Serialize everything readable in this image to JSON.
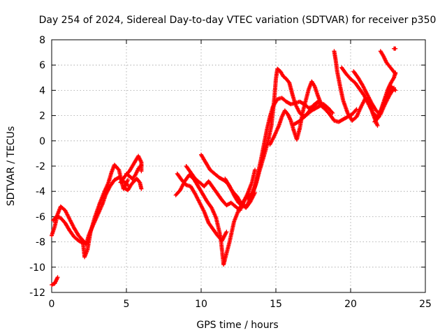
{
  "chart_data": {
    "type": "scatter",
    "title": "Day 254 of 2024, Sidereal Day-to-day VTEC variation (SDTVAR) for receiver p350",
    "xlabel": "GPS time / hours",
    "ylabel": "SDTVAR / TECUs",
    "xlim": [
      0,
      25
    ],
    "ylim": [
      -12,
      8
    ],
    "xticks": [
      0,
      5,
      10,
      15,
      20,
      25
    ],
    "yticks": [
      -12,
      -10,
      -8,
      -6,
      -4,
      -2,
      0,
      2,
      4,
      6,
      8
    ],
    "grid": true,
    "legend": "none",
    "marker": "plus",
    "color": "#ff0000",
    "series": [
      {
        "points": [
          [
            0.0,
            -11.4
          ],
          [
            0.2,
            -11.3
          ],
          [
            0.4,
            -10.8
          ]
        ]
      },
      {
        "points": [
          [
            0.0,
            -7.5
          ],
          [
            0.2,
            -6.8
          ],
          [
            0.4,
            -5.8
          ],
          [
            0.6,
            -5.2
          ],
          [
            0.9,
            -5.5
          ],
          [
            1.2,
            -6.2
          ],
          [
            1.5,
            -6.9
          ],
          [
            1.8,
            -7.5
          ],
          [
            2.1,
            -7.9
          ],
          [
            2.3,
            -8.2
          ],
          [
            2.5,
            -7.4
          ],
          [
            2.8,
            -6.6
          ],
          [
            3.1,
            -5.8
          ],
          [
            3.4,
            -5.0
          ],
          [
            3.6,
            -4.3
          ],
          [
            3.9,
            -3.6
          ],
          [
            4.2,
            -3.1
          ],
          [
            4.5,
            -2.9
          ],
          [
            4.8,
            -3.2
          ],
          [
            5.1,
            -3.5
          ]
        ]
      },
      {
        "points": [
          [
            0.1,
            -6.3
          ],
          [
            0.3,
            -6.0
          ],
          [
            0.6,
            -6.1
          ],
          [
            0.9,
            -6.5
          ],
          [
            1.2,
            -7.1
          ],
          [
            1.5,
            -7.6
          ],
          [
            1.8,
            -7.9
          ],
          [
            2.1,
            -8.1
          ],
          [
            2.2,
            -9.2
          ],
          [
            2.4,
            -8.6
          ],
          [
            2.6,
            -7.2
          ],
          [
            2.9,
            -6.0
          ],
          [
            3.2,
            -5.0
          ],
          [
            3.5,
            -4.1
          ],
          [
            3.8,
            -3.3
          ],
          [
            4.0,
            -2.5
          ],
          [
            4.2,
            -1.9
          ],
          [
            4.5,
            -2.3
          ],
          [
            4.8,
            -3.8
          ],
          [
            5.1,
            -3.1
          ]
        ]
      },
      {
        "points": [
          [
            4.6,
            -3.3
          ],
          [
            4.9,
            -2.8
          ],
          [
            5.2,
            -2.4
          ],
          [
            5.4,
            -2.0
          ],
          [
            5.6,
            -1.6
          ],
          [
            5.8,
            -1.2
          ],
          [
            6.0,
            -1.7
          ],
          [
            6.0,
            -2.4
          ]
        ]
      },
      {
        "points": [
          [
            4.8,
            -3.7
          ],
          [
            5.1,
            -3.9
          ],
          [
            5.3,
            -3.5
          ],
          [
            5.5,
            -3.2
          ],
          [
            5.7,
            -3.0
          ],
          [
            5.9,
            -3.3
          ],
          [
            6.0,
            -3.8
          ]
        ]
      },
      {
        "points": [
          [
            5.0,
            -2.6
          ],
          [
            5.2,
            -2.8
          ],
          [
            5.4,
            -3.0
          ],
          [
            5.6,
            -2.7
          ],
          [
            5.8,
            -2.2
          ],
          [
            6.0,
            -1.9
          ]
        ]
      },
      {
        "points": [
          [
            8.3,
            -4.3
          ],
          [
            8.6,
            -3.9
          ],
          [
            8.9,
            -3.2
          ],
          [
            9.2,
            -2.7
          ],
          [
            9.5,
            -3.0
          ],
          [
            9.8,
            -3.6
          ],
          [
            10.1,
            -4.2
          ],
          [
            10.4,
            -4.8
          ],
          [
            10.7,
            -5.3
          ],
          [
            11.0,
            -6.1
          ],
          [
            11.3,
            -7.6
          ],
          [
            11.5,
            -9.8
          ],
          [
            11.7,
            -8.9
          ],
          [
            11.9,
            -8.0
          ],
          [
            12.2,
            -6.4
          ],
          [
            12.5,
            -5.5
          ],
          [
            12.8,
            -4.9
          ],
          [
            13.1,
            -4.2
          ],
          [
            13.4,
            -3.3
          ],
          [
            13.6,
            -2.3
          ]
        ]
      },
      {
        "points": [
          [
            8.4,
            -2.6
          ],
          [
            8.7,
            -3.1
          ],
          [
            9.0,
            -3.5
          ],
          [
            9.3,
            -3.6
          ],
          [
            9.6,
            -4.2
          ],
          [
            9.9,
            -4.9
          ],
          [
            10.2,
            -5.6
          ],
          [
            10.5,
            -6.5
          ],
          [
            10.8,
            -7.0
          ],
          [
            11.1,
            -7.5
          ],
          [
            11.4,
            -7.9
          ],
          [
            11.7,
            -7.2
          ]
        ]
      },
      {
        "points": [
          [
            9.0,
            -2.0
          ],
          [
            9.3,
            -2.5
          ],
          [
            9.6,
            -3.0
          ],
          [
            9.9,
            -3.3
          ],
          [
            10.2,
            -3.6
          ],
          [
            10.5,
            -3.2
          ],
          [
            10.8,
            -3.7
          ],
          [
            11.1,
            -4.2
          ],
          [
            11.4,
            -4.7
          ],
          [
            11.7,
            -5.1
          ],
          [
            12.0,
            -4.9
          ],
          [
            12.3,
            -5.2
          ],
          [
            12.6,
            -5.5
          ],
          [
            12.9,
            -4.7
          ],
          [
            13.2,
            -4.2
          ]
        ]
      },
      {
        "points": [
          [
            10.0,
            -1.1
          ],
          [
            10.3,
            -1.7
          ],
          [
            10.6,
            -2.3
          ],
          [
            10.9,
            -2.6
          ],
          [
            11.2,
            -2.9
          ],
          [
            11.5,
            -3.1
          ],
          [
            11.8,
            -3.4
          ],
          [
            12.1,
            -4.0
          ],
          [
            12.4,
            -4.4
          ],
          [
            12.7,
            -5.0
          ],
          [
            13.0,
            -5.3
          ],
          [
            13.3,
            -4.8
          ],
          [
            13.6,
            -4.1
          ]
        ]
      },
      {
        "points": [
          [
            11.6,
            -3.0
          ],
          [
            11.9,
            -3.6
          ],
          [
            12.2,
            -4.3
          ],
          [
            12.5,
            -4.9
          ],
          [
            12.8,
            -5.2
          ],
          [
            13.1,
            -5.1
          ],
          [
            13.3,
            -4.4
          ],
          [
            13.6,
            -3.6
          ]
        ]
      },
      {
        "points": [
          [
            13.2,
            -4.6
          ],
          [
            13.5,
            -4.0
          ],
          [
            13.7,
            -3.3
          ],
          [
            13.9,
            -2.4
          ],
          [
            14.1,
            -1.6
          ],
          [
            14.3,
            -0.8
          ],
          [
            14.5,
            0.1
          ],
          [
            14.7,
            1.2
          ],
          [
            14.8,
            2.3
          ],
          [
            14.9,
            3.4
          ],
          [
            15.0,
            4.9
          ],
          [
            15.1,
            5.7
          ],
          [
            15.3,
            5.5
          ],
          [
            15.5,
            5.1
          ],
          [
            15.7,
            4.9
          ],
          [
            15.9,
            4.6
          ],
          [
            16.1,
            3.7
          ],
          [
            16.3,
            2.9
          ],
          [
            16.6,
            2.2
          ],
          [
            16.9,
            1.9
          ],
          [
            17.2,
            2.3
          ],
          [
            17.5,
            2.8
          ],
          [
            17.8,
            3.1
          ],
          [
            18.1,
            2.9
          ],
          [
            18.4,
            2.6
          ]
        ]
      },
      {
        "points": [
          [
            13.6,
            -3.6
          ],
          [
            13.8,
            -2.6
          ],
          [
            14.0,
            -1.5
          ],
          [
            14.2,
            -0.3
          ],
          [
            14.4,
            0.9
          ],
          [
            14.6,
            1.9
          ],
          [
            14.8,
            2.7
          ],
          [
            15.1,
            3.3
          ],
          [
            15.4,
            3.4
          ],
          [
            15.7,
            3.1
          ],
          [
            16.0,
            2.9
          ],
          [
            16.3,
            3.0
          ],
          [
            16.6,
            3.1
          ],
          [
            16.9,
            2.9
          ],
          [
            17.2,
            2.6
          ],
          [
            17.5,
            2.7
          ],
          [
            17.8,
            3.0
          ],
          [
            18.2,
            2.9
          ],
          [
            18.5,
            2.6
          ],
          [
            18.8,
            2.2
          ]
        ]
      },
      {
        "points": [
          [
            14.6,
            -0.3
          ],
          [
            14.9,
            0.4
          ],
          [
            15.2,
            1.2
          ],
          [
            15.4,
            1.9
          ],
          [
            15.6,
            2.4
          ],
          [
            15.8,
            2.1
          ],
          [
            16.0,
            1.6
          ],
          [
            16.2,
            0.8
          ],
          [
            16.4,
            0.1
          ],
          [
            16.6,
            1.0
          ],
          [
            16.8,
            2.3
          ],
          [
            17.0,
            3.2
          ],
          [
            17.2,
            4.1
          ],
          [
            17.4,
            4.7
          ],
          [
            17.6,
            4.3
          ],
          [
            17.8,
            3.6
          ],
          [
            18.0,
            3.0
          ]
        ]
      },
      {
        "points": [
          [
            16.2,
            1.3
          ],
          [
            16.5,
            1.5
          ],
          [
            16.8,
            1.8
          ],
          [
            17.1,
            2.1
          ],
          [
            17.4,
            2.4
          ],
          [
            17.7,
            2.6
          ],
          [
            18.0,
            2.8
          ],
          [
            18.3,
            2.5
          ],
          [
            18.6,
            2.1
          ],
          [
            18.9,
            1.6
          ],
          [
            19.2,
            1.5
          ],
          [
            19.5,
            1.7
          ],
          [
            19.8,
            1.9
          ],
          [
            20.1,
            2.1
          ],
          [
            20.4,
            2.5
          ]
        ]
      },
      {
        "points": [
          [
            18.9,
            7.1
          ],
          [
            19.0,
            6.4
          ],
          [
            19.1,
            5.5
          ],
          [
            19.3,
            4.3
          ],
          [
            19.5,
            3.2
          ],
          [
            19.8,
            2.2
          ],
          [
            20.1,
            1.6
          ],
          [
            20.4,
            1.9
          ],
          [
            20.7,
            2.7
          ],
          [
            21.0,
            3.4
          ],
          [
            21.3,
            2.8
          ],
          [
            21.5,
            2.1
          ],
          [
            21.8,
            1.2
          ]
        ]
      },
      {
        "points": [
          [
            19.4,
            5.8
          ],
          [
            19.7,
            5.3
          ],
          [
            20.0,
            4.9
          ],
          [
            20.3,
            4.6
          ],
          [
            20.6,
            4.1
          ],
          [
            20.9,
            3.6
          ],
          [
            21.2,
            2.9
          ],
          [
            21.5,
            2.2
          ],
          [
            21.8,
            1.9
          ],
          [
            22.1,
            2.6
          ],
          [
            22.4,
            3.5
          ],
          [
            22.7,
            4.3
          ],
          [
            23.0,
            4.0
          ]
        ]
      },
      {
        "points": [
          [
            20.2,
            5.5
          ],
          [
            20.5,
            5.0
          ],
          [
            20.8,
            4.4
          ],
          [
            21.1,
            3.7
          ],
          [
            21.4,
            3.0
          ],
          [
            21.7,
            2.4
          ],
          [
            22.0,
            2.1
          ],
          [
            22.3,
            2.9
          ],
          [
            22.6,
            3.6
          ],
          [
            22.9,
            4.2
          ]
        ]
      },
      {
        "points": [
          [
            21.6,
            1.5
          ],
          [
            21.9,
            1.9
          ],
          [
            22.1,
            2.7
          ],
          [
            22.3,
            3.4
          ],
          [
            22.5,
            4.1
          ],
          [
            22.7,
            4.6
          ],
          [
            22.9,
            5.0
          ],
          [
            23.0,
            5.4
          ]
        ]
      },
      {
        "points": [
          [
            22.0,
            7.1
          ],
          [
            22.2,
            6.7
          ],
          [
            22.4,
            6.2
          ],
          [
            22.6,
            5.9
          ],
          [
            22.8,
            5.6
          ],
          [
            23.0,
            5.3
          ]
        ]
      },
      {
        "points": [
          [
            22.9,
            7.3
          ],
          [
            23.0,
            7.3
          ]
        ]
      }
    ]
  }
}
